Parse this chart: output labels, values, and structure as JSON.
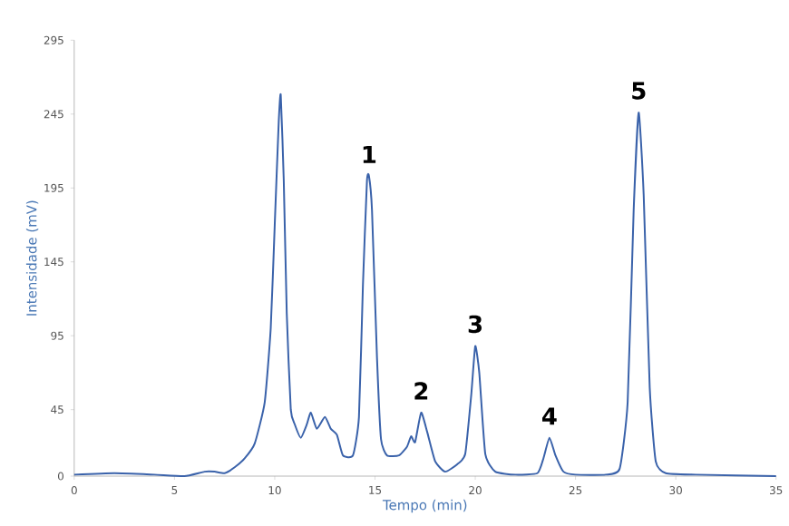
{
  "chart_data": {
    "type": "line",
    "xlabel": "Tempo (min)",
    "ylabel": "Intensidade (mV)",
    "xlim": [
      0,
      35
    ],
    "xticks": [
      0,
      5,
      10,
      15,
      20,
      25,
      30,
      35
    ],
    "ylim": [
      0,
      295
    ],
    "yticks": [
      0,
      45,
      95,
      145,
      195,
      245,
      295
    ],
    "grid": false,
    "marker": "none",
    "line_style": "solid",
    "series": [
      {
        "color": "#3a62aa",
        "x": [
          0,
          2,
          4,
          5.5,
          6.5,
          7,
          7.5,
          8,
          8.5,
          9,
          9.5,
          9.8,
          10,
          10.2,
          10.3,
          10.45,
          10.6,
          10.8,
          11,
          11.3,
          11.6,
          11.8,
          12.1,
          12.5,
          12.8,
          13.1,
          13.4,
          13.9,
          14.2,
          14.4,
          14.6,
          14.7,
          14.85,
          15.1,
          15.3,
          15.6,
          16.2,
          16.6,
          16.8,
          17,
          17.3,
          17.6,
          18,
          18.5,
          19.1,
          19.5,
          19.8,
          20,
          20.2,
          20.5,
          21,
          22,
          23.1,
          23.4,
          23.7,
          24,
          24.4,
          25,
          26.5,
          27.2,
          27.6,
          27.9,
          28.15,
          28.4,
          28.7,
          29,
          29.5,
          31,
          35
        ],
        "values": [
          1,
          2,
          1,
          0,
          3,
          3,
          2,
          6,
          12,
          22,
          50,
          100,
          170,
          240,
          258,
          200,
          110,
          45,
          35,
          26,
          35,
          43,
          32,
          40,
          32,
          28,
          14,
          14,
          40,
          130,
          200,
          203,
          180,
          80,
          25,
          14,
          14,
          20,
          27,
          23,
          43,
          30,
          10,
          3,
          8,
          15,
          55,
          88,
          70,
          15,
          3,
          1,
          2,
          12,
          26,
          14,
          3,
          1,
          1,
          5,
          50,
          180,
          246,
          190,
          60,
          10,
          2,
          1,
          0
        ]
      }
    ],
    "annotations": [
      {
        "text": "1",
        "x": 14.7,
        "y": 203
      },
      {
        "text": "2",
        "x": 17.3,
        "y": 43
      },
      {
        "text": "3",
        "x": 20.0,
        "y": 88
      },
      {
        "text": "4",
        "x": 23.7,
        "y": 26
      },
      {
        "text": "5",
        "x": 28.15,
        "y": 246
      }
    ]
  }
}
